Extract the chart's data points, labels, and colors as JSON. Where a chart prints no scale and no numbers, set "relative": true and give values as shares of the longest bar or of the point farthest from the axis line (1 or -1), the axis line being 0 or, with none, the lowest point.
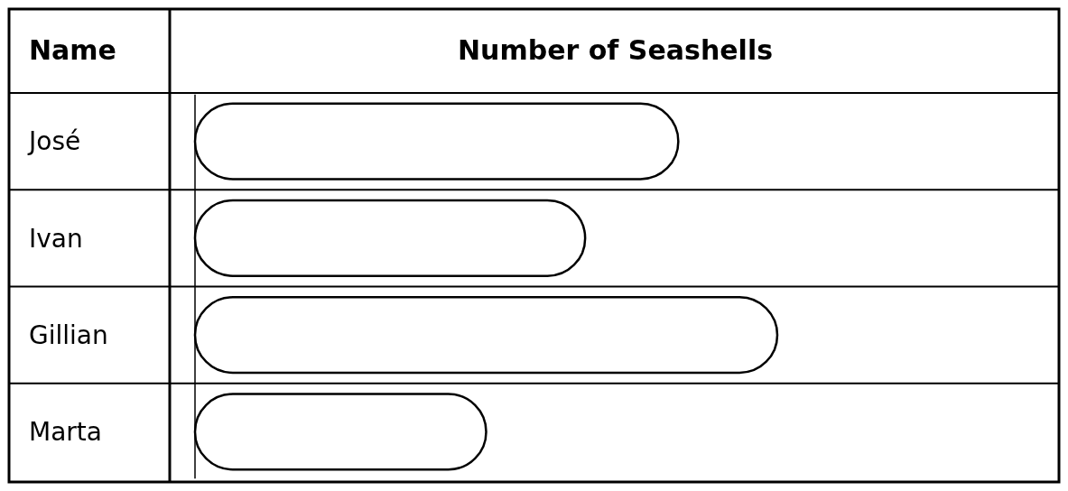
{
  "chart_data": {
    "type": "bar",
    "orientation": "horizontal",
    "relative": true,
    "xlabel": "Number of Seashells",
    "ylabel": "Name",
    "categories": [
      "José",
      "Ivan",
      "Gillian",
      "Marta"
    ],
    "values": [
      0.83,
      0.67,
      1,
      0.5
    ],
    "color": "#ffffff"
  }
}
